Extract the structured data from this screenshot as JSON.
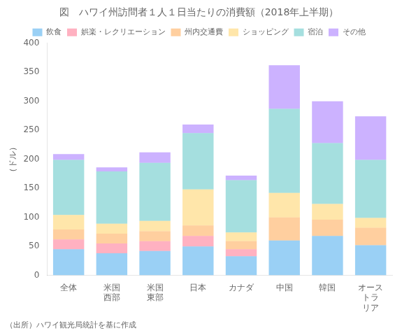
{
  "chart_data": {
    "type": "bar",
    "title": "図　ハワイ州訪問者１人１日当たりの消費額（2018年上半期）",
    "y_label": "（ドル）",
    "annotations": [
      "（出所）ハワイ観光局統計を基に作成"
    ],
    "categories": [
      "全体",
      "米国\n西部",
      "米国\n東部",
      "日本",
      "カナダ",
      "中国",
      "韓国",
      "オース\nトラ\nリア"
    ],
    "series": [
      {
        "name": "飲食",
        "values": [
          45,
          38,
          42,
          50,
          33,
          60,
          68,
          52
        ]
      },
      {
        "name": "娯楽・レクリエーション",
        "values": [
          17,
          17,
          17,
          18,
          12,
          0,
          0,
          0
        ]
      },
      {
        "name": "州内交通費",
        "values": [
          17,
          17,
          17,
          18,
          14,
          40,
          28,
          30
        ]
      },
      {
        "name": "ショッピング",
        "values": [
          25,
          17,
          18,
          62,
          15,
          42,
          27,
          17
        ]
      },
      {
        "name": "宿泊",
        "values": [
          95,
          90,
          100,
          97,
          90,
          145,
          105,
          100
        ]
      },
      {
        "name": "その他",
        "values": [
          10,
          7,
          18,
          15,
          8,
          75,
          72,
          75
        ]
      }
    ],
    "stacked": true,
    "ylim": [
      0,
      400
    ],
    "yticks": [
      0,
      50,
      100,
      150,
      200,
      250,
      300,
      350,
      400
    ],
    "grid": false,
    "legend": "top"
  }
}
